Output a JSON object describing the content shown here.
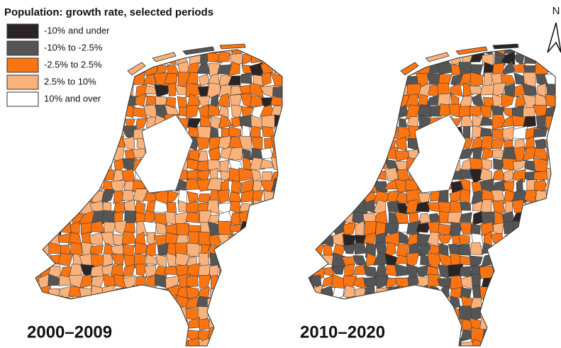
{
  "title": "Population: growth rate, selected periods",
  "legend": [
    {
      "label": "-10% and under",
      "color": "#2b2424"
    },
    {
      "label": "-10% to -2.5%",
      "color": "#555555"
    },
    {
      "label": "-2.5% to 2.5%",
      "color": "#fa7412"
    },
    {
      "label": "2.5% to 10%",
      "color": "#fbb27a"
    },
    {
      "label": "10% and over",
      "color": "#ffffff"
    }
  ],
  "maps": [
    {
      "label": "2000–2009"
    },
    {
      "label": "2010–2020"
    }
  ],
  "north_arrow": "N"
}
